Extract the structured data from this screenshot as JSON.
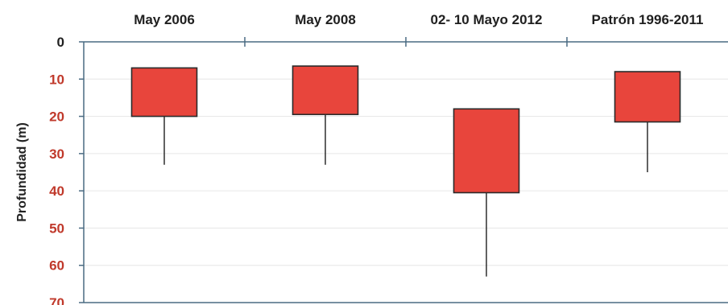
{
  "chart_data": {
    "type": "floating-bar",
    "title": "",
    "ylabel": "Profundidad (m)",
    "xlabel": "",
    "ylim": [
      0,
      70
    ],
    "y_inverted": true,
    "y_ticks": [
      0,
      10,
      20,
      30,
      40,
      50,
      60,
      70
    ],
    "grid": true,
    "categories": [
      "May 2006",
      "May 2008",
      "02- 10 Mayo 2012",
      "Patrón 1996-2011"
    ],
    "boxes": [
      {
        "top": 7,
        "bottom": 20,
        "whisker_end": 33
      },
      {
        "top": 6.5,
        "bottom": 19.5,
        "whisker_end": 33
      },
      {
        "top": 18,
        "bottom": 40.5,
        "whisker_end": 63
      },
      {
        "top": 8,
        "bottom": 21.5,
        "whisker_end": 35
      }
    ],
    "colors": {
      "box_fill": "#e8453c",
      "box_stroke": "#2a2a2a",
      "axis": "#4a6b82",
      "tick_red": "#c0392b",
      "tick_dark": "#1f1f1f",
      "grid": "#e6e6e6"
    }
  }
}
